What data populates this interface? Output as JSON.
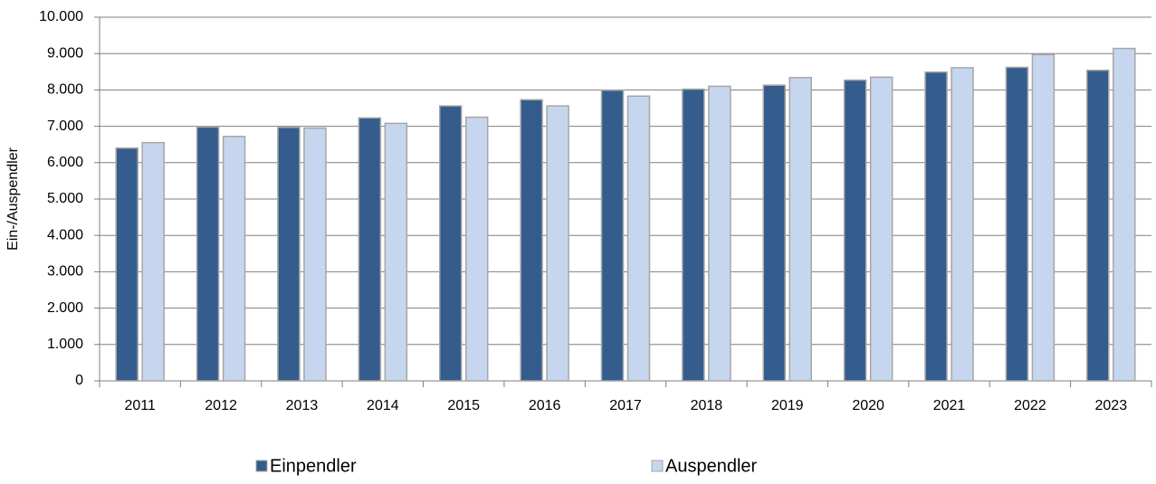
{
  "chart_data": {
    "type": "bar",
    "y_label": "Ein-/Auspendler",
    "categories": [
      "2011",
      "2012",
      "2013",
      "2014",
      "2015",
      "2016",
      "2017",
      "2018",
      "2019",
      "2020",
      "2021",
      "2022",
      "2023"
    ],
    "series": [
      {
        "name": "Einpendler",
        "color": "#345d8e",
        "values": [
          6400,
          6980,
          6970,
          7230,
          7560,
          7730,
          7990,
          8020,
          8130,
          8270,
          8490,
          8620,
          8540
        ]
      },
      {
        "name": "Auspendler",
        "color": "#c6d6ef",
        "values": [
          6550,
          6720,
          6950,
          7080,
          7250,
          7560,
          7830,
          8100,
          8340,
          8350,
          8610,
          8970,
          9140
        ]
      }
    ],
    "ylim": [
      0,
      10000
    ],
    "yticks": [
      0,
      {
        "value": 1000,
        "label": "1.000"
      },
      {
        "value": 2000,
        "label": "2.000"
      },
      {
        "value": 3000,
        "label": "3.000"
      },
      {
        "value": 4000,
        "label": "4.000"
      },
      {
        "value": 5000,
        "label": "5.000"
      },
      {
        "value": 6000,
        "label": "6.000"
      },
      {
        "value": 7000,
        "label": "7.000"
      },
      {
        "value": 8000,
        "label": "8.000"
      },
      {
        "value": 9000,
        "label": "9.000"
      },
      {
        "value": 10000,
        "label": "10.000"
      }
    ],
    "grid": true
  }
}
